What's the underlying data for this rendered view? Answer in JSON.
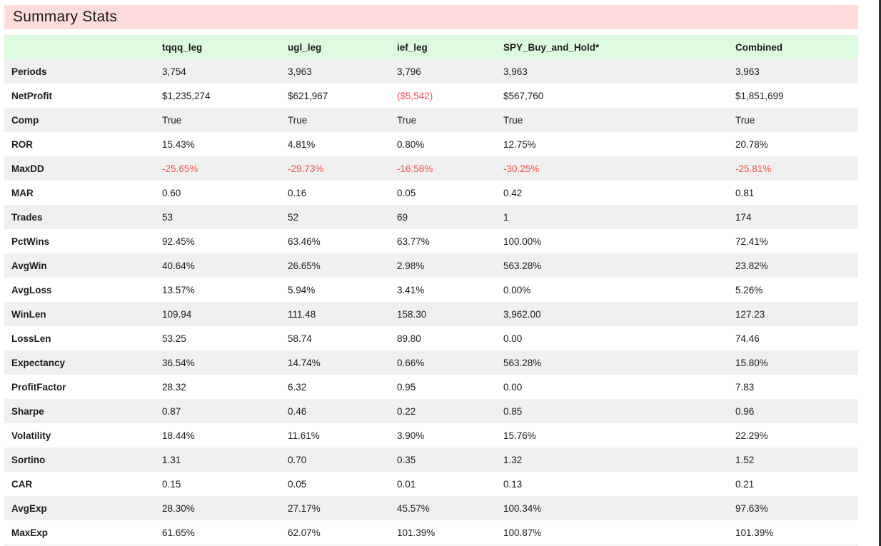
{
  "header": {
    "title": "Summary Stats"
  },
  "table": {
    "columns": [
      "",
      "tqqq_leg",
      "ugl_leg",
      "ief_leg",
      "SPY_Buy_and_Hold*",
      "Combined"
    ],
    "rows": [
      {
        "label": "Periods",
        "values": [
          "3,754",
          "3,963",
          "3,796",
          "3,963",
          "3,963"
        ],
        "red": []
      },
      {
        "label": "NetProfit",
        "values": [
          "$1,235,274",
          "$621,967",
          "($5,542)",
          "$567,760",
          "$1,851,699"
        ],
        "red": [
          2
        ]
      },
      {
        "label": "Comp",
        "values": [
          "True",
          "True",
          "True",
          "True",
          "True"
        ],
        "red": []
      },
      {
        "label": "ROR",
        "values": [
          "15.43%",
          "4.81%",
          "0.80%",
          "12.75%",
          "20.78%"
        ],
        "red": []
      },
      {
        "label": "MaxDD",
        "values": [
          "-25.65%",
          "-29.73%",
          "-16.58%",
          "-30.25%",
          "-25.81%"
        ],
        "red": [
          0,
          1,
          2,
          3,
          4
        ]
      },
      {
        "label": "MAR",
        "values": [
          "0.60",
          "0.16",
          "0.05",
          "0.42",
          "0.81"
        ],
        "red": []
      },
      {
        "label": "Trades",
        "values": [
          "53",
          "52",
          "69",
          "1",
          "174"
        ],
        "red": []
      },
      {
        "label": "PctWins",
        "values": [
          "92.45%",
          "63.46%",
          "63.77%",
          "100.00%",
          "72.41%"
        ],
        "red": []
      },
      {
        "label": "AvgWin",
        "values": [
          "40.64%",
          "26.65%",
          "2.98%",
          "563.28%",
          "23.82%"
        ],
        "red": []
      },
      {
        "label": "AvgLoss",
        "values": [
          "13.57%",
          "5.94%",
          "3.41%",
          "0.00%",
          "5.26%"
        ],
        "red": []
      },
      {
        "label": "WinLen",
        "values": [
          "109.94",
          "111.48",
          "158.30",
          "3,962.00",
          "127.23"
        ],
        "red": []
      },
      {
        "label": "LossLen",
        "values": [
          "53.25",
          "58.74",
          "89.80",
          "0.00",
          "74.46"
        ],
        "red": []
      },
      {
        "label": "Expectancy",
        "values": [
          "36.54%",
          "14.74%",
          "0.66%",
          "563.28%",
          "15.80%"
        ],
        "red": []
      },
      {
        "label": "ProfitFactor",
        "values": [
          "28.32",
          "6.32",
          "0.95",
          "0.00",
          "7.83"
        ],
        "red": []
      },
      {
        "label": "Sharpe",
        "values": [
          "0.87",
          "0.46",
          "0.22",
          "0.85",
          "0.96"
        ],
        "red": []
      },
      {
        "label": "Volatility",
        "values": [
          "18.44%",
          "11.61%",
          "3.90%",
          "15.76%",
          "22.29%"
        ],
        "red": []
      },
      {
        "label": "Sortino",
        "values": [
          "1.31",
          "0.70",
          "0.35",
          "1.32",
          "1.52"
        ],
        "red": []
      },
      {
        "label": "CAR",
        "values": [
          "0.15",
          "0.05",
          "0.01",
          "0.13",
          "0.21"
        ],
        "red": []
      },
      {
        "label": "AvgExp",
        "values": [
          "28.30%",
          "27.17%",
          "45.57%",
          "100.34%",
          "97.63%"
        ],
        "red": []
      },
      {
        "label": "MaxExp",
        "values": [
          "61.65%",
          "62.07%",
          "101.39%",
          "100.87%",
          "101.39%"
        ],
        "red": []
      }
    ]
  },
  "colors": {
    "banner_bg": "#ffdcdc",
    "header_bg": "#ddfcdf",
    "row_alt_bg": "#f0f0f0",
    "negative": "#f0524e",
    "text": "#1c1c1c",
    "border": "#2e2e2e"
  }
}
